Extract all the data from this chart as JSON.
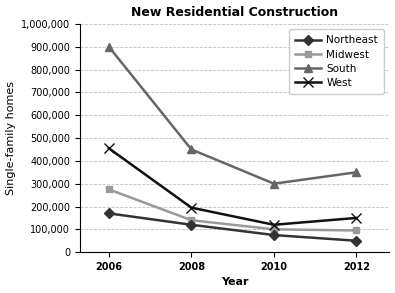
{
  "title": "New Residential Construction",
  "xlabel": "Year",
  "ylabel": "Single-family homes",
  "years": [
    2006,
    2008,
    2010,
    2012
  ],
  "series": {
    "Northeast": {
      "values": [
        170000,
        120000,
        75000,
        50000
      ],
      "color": "#333333",
      "marker": "D",
      "markersize": 5,
      "linewidth": 1.8,
      "zorder": 4
    },
    "Midwest": {
      "values": [
        275000,
        140000,
        100000,
        95000
      ],
      "color": "#999999",
      "marker": "s",
      "markersize": 5,
      "linewidth": 1.8,
      "zorder": 3
    },
    "South": {
      "values": [
        900000,
        450000,
        300000,
        350000
      ],
      "color": "#666666",
      "marker": "^",
      "markersize": 6,
      "linewidth": 1.8,
      "zorder": 5
    },
    "West": {
      "values": [
        455000,
        195000,
        120000,
        150000
      ],
      "color": "#111111",
      "marker": "x",
      "markersize": 7,
      "linewidth": 1.8,
      "zorder": 6
    }
  },
  "ylim": [
    0,
    1000000
  ],
  "yticks": [
    0,
    100000,
    200000,
    300000,
    400000,
    500000,
    600000,
    700000,
    800000,
    900000,
    1000000
  ],
  "xticks": [
    2006,
    2008,
    2010,
    2012
  ],
  "background_color": "#ffffff",
  "grid_color": "#bbbbbb",
  "title_fontsize": 9,
  "axis_label_fontsize": 8,
  "tick_fontsize": 7,
  "legend_fontsize": 7.5
}
